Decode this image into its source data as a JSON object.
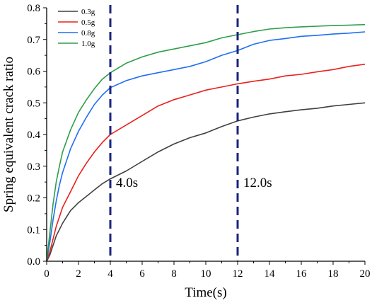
{
  "chart_data": {
    "type": "line",
    "xlabel": "Time(s)",
    "ylabel": "Spring equivalent crack ratio",
    "xlim": [
      0,
      20
    ],
    "ylim": [
      0,
      0.8
    ],
    "xticks": [
      "0",
      "2",
      "4",
      "6",
      "8",
      "10",
      "12",
      "14",
      "16",
      "18",
      "20"
    ],
    "yticks": [
      "0.0",
      "0.1",
      "0.2",
      "0.3",
      "0.4",
      "0.5",
      "0.6",
      "0.7",
      "0.8"
    ],
    "grid": false,
    "legend_position": "top-left",
    "series": [
      {
        "name": "0.3g",
        "color": "#404040",
        "x": [
          0,
          0.2,
          0.4,
          0.6,
          0.8,
          1,
          1.5,
          2,
          2.5,
          3,
          3.5,
          4,
          5,
          6,
          7,
          8,
          9,
          10,
          11,
          12,
          13,
          14,
          15,
          16,
          17,
          18,
          19,
          20
        ],
        "y": [
          0,
          0.02,
          0.05,
          0.08,
          0.1,
          0.12,
          0.16,
          0.185,
          0.205,
          0.225,
          0.245,
          0.26,
          0.285,
          0.315,
          0.345,
          0.37,
          0.39,
          0.405,
          0.425,
          0.443,
          0.455,
          0.465,
          0.472,
          0.478,
          0.483,
          0.49,
          0.495,
          0.5
        ]
      },
      {
        "name": "0.5g",
        "color": "#e8211c",
        "x": [
          0,
          0.2,
          0.4,
          0.6,
          0.8,
          1,
          1.5,
          2,
          2.5,
          3,
          3.5,
          4,
          5,
          6,
          7,
          8,
          9,
          10,
          11,
          12,
          13,
          14,
          15,
          16,
          17,
          18,
          19,
          20
        ],
        "y": [
          0,
          0.03,
          0.07,
          0.11,
          0.14,
          0.17,
          0.22,
          0.27,
          0.31,
          0.345,
          0.375,
          0.4,
          0.43,
          0.46,
          0.49,
          0.51,
          0.525,
          0.54,
          0.55,
          0.56,
          0.568,
          0.575,
          0.585,
          0.59,
          0.598,
          0.605,
          0.615,
          0.622
        ]
      },
      {
        "name": "0.8g",
        "color": "#1f6ff2",
        "x": [
          0,
          0.2,
          0.4,
          0.6,
          0.8,
          1,
          1.5,
          2,
          2.5,
          3,
          3.5,
          4,
          5,
          6,
          7,
          8,
          9,
          10,
          11,
          12,
          13,
          14,
          15,
          16,
          17,
          18,
          19,
          20
        ],
        "y": [
          0,
          0.06,
          0.13,
          0.19,
          0.24,
          0.28,
          0.355,
          0.41,
          0.455,
          0.495,
          0.525,
          0.548,
          0.57,
          0.585,
          0.595,
          0.605,
          0.615,
          0.63,
          0.65,
          0.665,
          0.685,
          0.697,
          0.703,
          0.71,
          0.713,
          0.717,
          0.72,
          0.724
        ]
      },
      {
        "name": "1.0g",
        "color": "#2e9e4a",
        "x": [
          0,
          0.2,
          0.4,
          0.6,
          0.8,
          1,
          1.5,
          2,
          2.5,
          3,
          3.5,
          4,
          5,
          6,
          7,
          8,
          9,
          10,
          11,
          12,
          13,
          14,
          15,
          16,
          17,
          18,
          19,
          20
        ],
        "y": [
          0,
          0.09,
          0.18,
          0.25,
          0.3,
          0.345,
          0.415,
          0.47,
          0.51,
          0.545,
          0.575,
          0.595,
          0.625,
          0.645,
          0.66,
          0.67,
          0.68,
          0.69,
          0.705,
          0.715,
          0.725,
          0.733,
          0.737,
          0.74,
          0.742,
          0.744,
          0.745,
          0.747
        ]
      }
    ],
    "vertical_markers": [
      {
        "x": 4,
        "label": "4.0s",
        "color": "#1a237e"
      },
      {
        "x": 12,
        "label": "12.0s",
        "color": "#1a237e"
      }
    ]
  }
}
